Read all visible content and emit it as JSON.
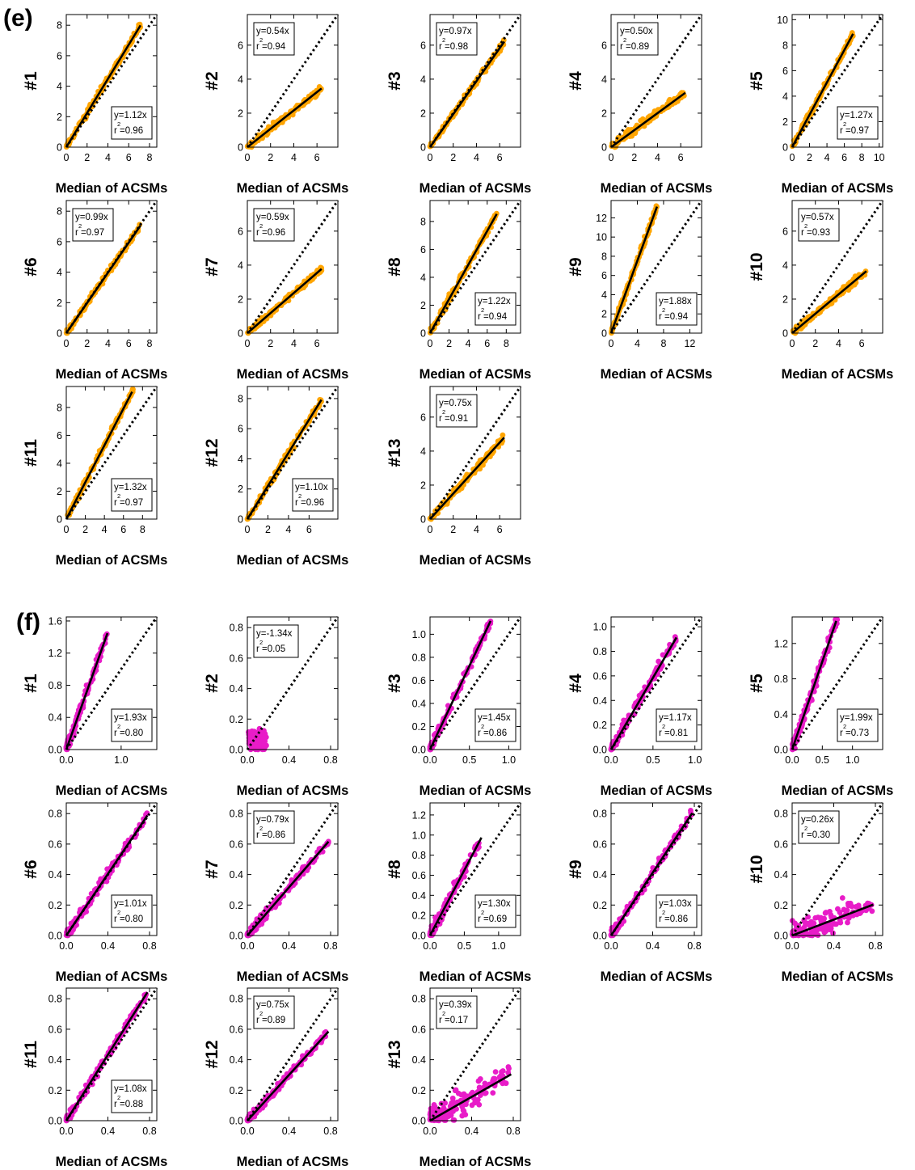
{
  "panels": [
    {
      "label": "(e)",
      "color": "#ffa500",
      "xlabel": "Median of ACSMs",
      "subplots": [
        {
          "id": "#1",
          "slope": 1.12,
          "r2": "0.96",
          "box_text": "y=1.12x",
          "box_r2": "=0.96",
          "xticks": [
            0,
            2,
            4,
            6,
            8
          ],
          "yticks": [
            0,
            2,
            4,
            6,
            8
          ],
          "ylim": [
            0,
            8.7
          ],
          "box_pos": "bottom-right"
        },
        {
          "id": "#2",
          "slope": 0.54,
          "r2": "0.94",
          "box_text": "y=0.54x",
          "box_r2": "=0.94",
          "xticks": [
            0,
            2,
            4,
            6
          ],
          "yticks": [
            0,
            2,
            4,
            6
          ],
          "ylim": [
            0,
            7.8
          ],
          "box_pos": "top-left"
        },
        {
          "id": "#3",
          "slope": 0.97,
          "r2": "0.98",
          "box_text": "y=0.97x",
          "box_r2": "=0.98",
          "xticks": [
            0,
            2,
            4,
            6
          ],
          "yticks": [
            0,
            2,
            4,
            6
          ],
          "ylim": [
            0,
            7.8
          ],
          "box_pos": "top-left"
        },
        {
          "id": "#4",
          "slope": 0.5,
          "r2": "0.89",
          "box_text": "y=0.50x",
          "box_r2": "=0.89",
          "xticks": [
            0,
            2,
            4,
            6
          ],
          "yticks": [
            0,
            2,
            4,
            6
          ],
          "ylim": [
            0,
            7.8
          ],
          "box_pos": "top-left"
        },
        {
          "id": "#5",
          "slope": 1.27,
          "r2": "0.97",
          "box_text": "y=1.27x",
          "box_r2": "=0.97",
          "xticks": [
            0,
            2,
            4,
            6,
            8,
            10
          ],
          "yticks": [
            0,
            2,
            4,
            6,
            8,
            10
          ],
          "ylim": [
            0,
            10.4
          ],
          "box_pos": "bottom-right"
        },
        {
          "id": "#6",
          "slope": 0.99,
          "r2": "0.97",
          "box_text": "y=0.99x",
          "box_r2": "=0.97",
          "xticks": [
            0,
            2,
            4,
            6,
            8
          ],
          "yticks": [
            0,
            2,
            4,
            6,
            8
          ],
          "ylim": [
            0,
            8.7
          ],
          "box_pos": "top-left"
        },
        {
          "id": "#7",
          "slope": 0.59,
          "r2": "0.96",
          "box_text": "y=0.59x",
          "box_r2": "=0.96",
          "xticks": [
            0,
            2,
            4,
            6
          ],
          "yticks": [
            0,
            2,
            4,
            6
          ],
          "ylim": [
            0,
            7.8
          ],
          "box_pos": "top-left"
        },
        {
          "id": "#8",
          "slope": 1.22,
          "r2": "0.94",
          "box_text": "y=1.22x",
          "box_r2": "=0.94",
          "xticks": [
            0,
            2,
            4,
            6,
            8
          ],
          "yticks": [
            0,
            2,
            4,
            6,
            8
          ],
          "ylim": [
            0,
            9.5
          ],
          "box_pos": "bottom-right"
        },
        {
          "id": "#9",
          "slope": 1.88,
          "r2": "0.94",
          "box_text": "y=1.88x",
          "box_r2": "=0.94",
          "xticks": [
            0,
            4,
            8,
            12
          ],
          "yticks": [
            0,
            2,
            4,
            6,
            8,
            10,
            12
          ],
          "ylim": [
            0,
            13.8
          ],
          "box_pos": "bottom-right"
        },
        {
          "id": "#10",
          "slope": 0.57,
          "r2": "0.93",
          "box_text": "y=0.57x",
          "box_r2": "=0.93",
          "xticks": [
            0,
            2,
            4,
            6
          ],
          "yticks": [
            0,
            2,
            4,
            6
          ],
          "ylim": [
            0,
            7.8
          ],
          "box_pos": "top-left"
        },
        {
          "id": "#11",
          "slope": 1.32,
          "r2": "0.97",
          "box_text": "y=1.32x",
          "box_r2": "=0.97",
          "xticks": [
            0,
            2,
            4,
            6,
            8
          ],
          "yticks": [
            0,
            2,
            4,
            6,
            8
          ],
          "ylim": [
            0,
            9.5
          ],
          "box_pos": "bottom-right"
        },
        {
          "id": "#12",
          "slope": 1.1,
          "r2": "0.96",
          "box_text": "y=1.10x",
          "box_r2": "=0.96",
          "xticks": [
            0,
            2,
            4,
            6
          ],
          "yticks": [
            0,
            2,
            4,
            6,
            8
          ],
          "ylim": [
            0,
            8.8
          ],
          "box_pos": "bottom-right"
        },
        {
          "id": "#13",
          "slope": 0.75,
          "r2": "0.91",
          "box_text": "y=0.75x",
          "box_r2": "=0.91",
          "xticks": [
            0,
            2,
            4,
            6
          ],
          "yticks": [
            0,
            2,
            4,
            6
          ],
          "ylim": [
            0,
            7.8
          ],
          "box_pos": "top-left"
        }
      ]
    },
    {
      "label": "(f)",
      "color": "#e81cc8",
      "xlabel": "Median of ACSMs",
      "subplots": [
        {
          "id": "#1",
          "slope": 1.93,
          "r2": "0.80",
          "box_text": "y=1.93x",
          "box_r2": "=0.80",
          "xticks": [
            "0.0",
            "1.0"
          ],
          "yticks": [
            "0.0",
            "0.4",
            "0.8",
            "1.2",
            "1.6"
          ],
          "ylim": [
            0,
            1.65
          ],
          "box_pos": "bottom-right"
        },
        {
          "id": "#2",
          "slope": -1.34,
          "r2": "0.05",
          "box_text": "y=-1.34x",
          "box_r2": "=0.05",
          "xticks": [
            "0.0",
            "0.4",
            "0.8"
          ],
          "yticks": [
            "0.0",
            "0.2",
            "0.4",
            "0.6",
            "0.8"
          ],
          "ylim": [
            0,
            0.87
          ],
          "box_pos": "top-left"
        },
        {
          "id": "#3",
          "slope": 1.45,
          "r2": "0.86",
          "box_text": "y=1.45x",
          "box_r2": "=0.86",
          "xticks": [
            "0.0",
            "0.5",
            "1.0"
          ],
          "yticks": [
            "0.0",
            "0.2",
            "0.4",
            "0.6",
            "0.8",
            "1.0"
          ],
          "ylim": [
            0,
            1.15
          ],
          "box_pos": "bottom-right"
        },
        {
          "id": "#4",
          "slope": 1.17,
          "r2": "0.81",
          "box_text": "y=1.17x",
          "box_r2": "=0.81",
          "xticks": [
            "0.0",
            "0.5",
            "1.0"
          ],
          "yticks": [
            "0.0",
            "0.2",
            "0.4",
            "0.6",
            "0.8",
            "1.0"
          ],
          "ylim": [
            0,
            1.08
          ],
          "box_pos": "bottom-right"
        },
        {
          "id": "#5",
          "slope": 1.99,
          "r2": "0.73",
          "box_text": "y=1.99x",
          "box_r2": "=0.73",
          "xticks": [
            "0.0",
            "0.5",
            "1.0"
          ],
          "yticks": [
            "0.0",
            "0.4",
            "0.8",
            "1.2"
          ],
          "ylim": [
            0,
            1.5
          ],
          "box_pos": "bottom-right"
        },
        {
          "id": "#6",
          "slope": 1.01,
          "r2": "0.80",
          "box_text": "y=1.01x",
          "box_r2": "=0.80",
          "xticks": [
            "0.0",
            "0.4",
            "0.8"
          ],
          "yticks": [
            "0.0",
            "0.2",
            "0.4",
            "0.6",
            "0.8"
          ],
          "ylim": [
            0,
            0.87
          ],
          "box_pos": "bottom-right"
        },
        {
          "id": "#7",
          "slope": 0.79,
          "r2": "0.86",
          "box_text": "y=0.79x",
          "box_r2": "=0.86",
          "xticks": [
            "0.0",
            "0.4",
            "0.8"
          ],
          "yticks": [
            "0.0",
            "0.2",
            "0.4",
            "0.6",
            "0.8"
          ],
          "ylim": [
            0,
            0.87
          ],
          "box_pos": "top-left"
        },
        {
          "id": "#8",
          "slope": 1.3,
          "r2": "0.69",
          "box_text": "y=1.30x",
          "box_r2": "=0.69",
          "xticks": [
            "0.0",
            "0.5",
            "1.0"
          ],
          "yticks": [
            "0.0",
            "0.2",
            "0.4",
            "0.6",
            "0.8",
            "1.0",
            "1.2"
          ],
          "ylim": [
            0,
            1.32
          ],
          "box_pos": "bottom-right"
        },
        {
          "id": "#9",
          "slope": 1.03,
          "r2": "0.86",
          "box_text": "y=1.03x",
          "box_r2": "=0.86",
          "xticks": [
            "0.0",
            "0.4",
            "0.8"
          ],
          "yticks": [
            "0.0",
            "0.2",
            "0.4",
            "0.6",
            "0.8"
          ],
          "ylim": [
            0,
            0.87
          ],
          "box_pos": "bottom-right"
        },
        {
          "id": "#10",
          "slope": 0.26,
          "r2": "0.30",
          "box_text": "y=0.26x",
          "box_r2": "=0.30",
          "xticks": [
            "0.0",
            "0.4",
            "0.8"
          ],
          "yticks": [
            "0.0",
            "0.2",
            "0.4",
            "0.6",
            "0.8"
          ],
          "ylim": [
            0,
            0.87
          ],
          "box_pos": "top-left"
        },
        {
          "id": "#11",
          "slope": 1.08,
          "r2": "0.88",
          "box_text": "y=1.08x",
          "box_r2": "=0.88",
          "xticks": [
            "0.0",
            "0.4",
            "0.8"
          ],
          "yticks": [
            "0.0",
            "0.2",
            "0.4",
            "0.6",
            "0.8"
          ],
          "ylim": [
            0,
            0.87
          ],
          "box_pos": "bottom-right"
        },
        {
          "id": "#12",
          "slope": 0.75,
          "r2": "0.89",
          "box_text": "y=0.75x",
          "box_r2": "=0.89",
          "xticks": [
            "0.0",
            "0.4",
            "0.8"
          ],
          "yticks": [
            "0.0",
            "0.2",
            "0.4",
            "0.6",
            "0.8"
          ],
          "ylim": [
            0,
            0.87
          ],
          "box_pos": "top-left"
        },
        {
          "id": "#13",
          "slope": 0.39,
          "r2": "0.17",
          "box_text": "y=0.39x",
          "box_r2": "=0.17",
          "xticks": [
            "0.0",
            "0.4",
            "0.8"
          ],
          "yticks": [
            "0.0",
            "0.2",
            "0.4",
            "0.6",
            "0.8"
          ],
          "ylim": [
            0,
            0.87
          ],
          "box_pos": "top-left"
        }
      ]
    }
  ],
  "chart_data": {
    "type": "scatter",
    "panels": [
      "(e)",
      "(f)"
    ],
    "xlabel": "Median of ACSMs",
    "series_note": "each subplot plots one instrument (#1-#13) vs. the median of ACSMs with a 1:1 dotted line and a linear fit",
    "e": [
      {
        "name": "#1",
        "slope": 1.12,
        "r2": 0.96,
        "xlim": [
          0,
          8.7
        ],
        "ylim": [
          0,
          8.7
        ]
      },
      {
        "name": "#2",
        "slope": 0.54,
        "r2": 0.94,
        "xlim": [
          0,
          7.8
        ],
        "ylim": [
          0,
          7.8
        ]
      },
      {
        "name": "#3",
        "slope": 0.97,
        "r2": 0.98,
        "xlim": [
          0,
          7.8
        ],
        "ylim": [
          0,
          7.8
        ]
      },
      {
        "name": "#4",
        "slope": 0.5,
        "r2": 0.89,
        "xlim": [
          0,
          7.8
        ],
        "ylim": [
          0,
          7.8
        ]
      },
      {
        "name": "#5",
        "slope": 1.27,
        "r2": 0.97,
        "xlim": [
          0,
          10.4
        ],
        "ylim": [
          0,
          10.4
        ]
      },
      {
        "name": "#6",
        "slope": 0.99,
        "r2": 0.97,
        "xlim": [
          0,
          8.7
        ],
        "ylim": [
          0,
          8.7
        ]
      },
      {
        "name": "#7",
        "slope": 0.59,
        "r2": 0.96,
        "xlim": [
          0,
          7.8
        ],
        "ylim": [
          0,
          7.8
        ]
      },
      {
        "name": "#8",
        "slope": 1.22,
        "r2": 0.94,
        "xlim": [
          0,
          9.5
        ],
        "ylim": [
          0,
          9.5
        ]
      },
      {
        "name": "#9",
        "slope": 1.88,
        "r2": 0.94,
        "xlim": [
          0,
          13.8
        ],
        "ylim": [
          0,
          13.8
        ]
      },
      {
        "name": "#10",
        "slope": 0.57,
        "r2": 0.93,
        "xlim": [
          0,
          7.8
        ],
        "ylim": [
          0,
          7.8
        ]
      },
      {
        "name": "#11",
        "slope": 1.32,
        "r2": 0.97,
        "xlim": [
          0,
          9.5
        ],
        "ylim": [
          0,
          9.5
        ]
      },
      {
        "name": "#12",
        "slope": 1.1,
        "r2": 0.96,
        "xlim": [
          0,
          8.8
        ],
        "ylim": [
          0,
          8.8
        ]
      },
      {
        "name": "#13",
        "slope": 0.75,
        "r2": 0.91,
        "xlim": [
          0,
          7.8
        ],
        "ylim": [
          0,
          7.8
        ]
      }
    ],
    "f": [
      {
        "name": "#1",
        "slope": 1.93,
        "r2": 0.8,
        "xlim": [
          0,
          1.65
        ],
        "ylim": [
          0,
          1.65
        ]
      },
      {
        "name": "#2",
        "slope": -1.34,
        "r2": 0.05,
        "xlim": [
          0,
          0.87
        ],
        "ylim": [
          0,
          0.87
        ]
      },
      {
        "name": "#3",
        "slope": 1.45,
        "r2": 0.86,
        "xlim": [
          0,
          1.15
        ],
        "ylim": [
          0,
          1.15
        ]
      },
      {
        "name": "#4",
        "slope": 1.17,
        "r2": 0.81,
        "xlim": [
          0,
          1.08
        ],
        "ylim": [
          0,
          1.08
        ]
      },
      {
        "name": "#5",
        "slope": 1.99,
        "r2": 0.73,
        "xlim": [
          0,
          1.5
        ],
        "ylim": [
          0,
          1.5
        ]
      },
      {
        "name": "#6",
        "slope": 1.01,
        "r2": 0.8,
        "xlim": [
          0,
          0.87
        ],
        "ylim": [
          0,
          0.87
        ]
      },
      {
        "name": "#7",
        "slope": 0.79,
        "r2": 0.86,
        "xlim": [
          0,
          0.87
        ],
        "ylim": [
          0,
          0.87
        ]
      },
      {
        "name": "#8",
        "slope": 1.3,
        "r2": 0.69,
        "xlim": [
          0,
          1.32
        ],
        "ylim": [
          0,
          1.32
        ]
      },
      {
        "name": "#9",
        "slope": 1.03,
        "r2": 0.86,
        "xlim": [
          0,
          0.87
        ],
        "ylim": [
          0,
          0.87
        ]
      },
      {
        "name": "#10",
        "slope": 0.26,
        "r2": 0.3,
        "xlim": [
          0,
          0.87
        ],
        "ylim": [
          0,
          0.87
        ]
      },
      {
        "name": "#11",
        "slope": 1.08,
        "r2": 0.88,
        "xlim": [
          0,
          0.87
        ],
        "ylim": [
          0,
          0.87
        ]
      },
      {
        "name": "#12",
        "slope": 0.75,
        "r2": 0.89,
        "xlim": [
          0,
          0.87
        ],
        "ylim": [
          0,
          0.87
        ]
      },
      {
        "name": "#13",
        "slope": 0.39,
        "r2": 0.17,
        "xlim": [
          0,
          0.87
        ],
        "ylim": [
          0,
          0.87
        ]
      }
    ]
  }
}
